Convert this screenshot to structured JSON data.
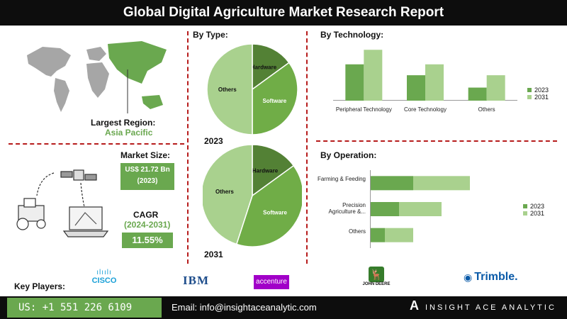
{
  "title": "Global Digital Agriculture Market Research Report",
  "region": {
    "label": "Largest Region:",
    "value": "Asia Pacific"
  },
  "market_size": {
    "label": "Market Size:",
    "value": "US$ 21.72 Bn",
    "year": "(2023)"
  },
  "cagr": {
    "label": "CAGR",
    "period": "(2024-2031)",
    "value": "11.55%"
  },
  "by_type": {
    "title": "By Type:",
    "year_2023": "2023",
    "year_2031": "2031"
  },
  "by_technology": {
    "title": "By  Technology:"
  },
  "by_operation": {
    "title": "By Operation:"
  },
  "key_players": {
    "label": "Key Players:",
    "logos": [
      "CISCO",
      "IBM",
      "accenture",
      "JOHN DEERE",
      "Trimble."
    ]
  },
  "footer": {
    "phone": "US: +1 551 226 6109",
    "email": "Email: info@insightaceanalytic.com",
    "brand": "INSIGHT ACE ANALYTIC"
  },
  "colors": {
    "dark_green": "#538135",
    "mid_green": "#70ad47",
    "light_green": "#a9d18e",
    "bar_2031": "#a9d18e",
    "bar_2023": "#6aa84f",
    "accent_red": "#b71c1c"
  },
  "chart_data": [
    {
      "type": "pie",
      "title": "By Type:",
      "year": "2023",
      "labels": [
        "Hardware",
        "Software",
        "Others"
      ],
      "values": [
        15,
        35,
        50
      ]
    },
    {
      "type": "pie",
      "title": "By Type:",
      "year": "2031",
      "labels": [
        "Hardware",
        "Software",
        "Others"
      ],
      "values": [
        15,
        40,
        45
      ]
    },
    {
      "type": "bar",
      "title": "By  Technology:",
      "categories": [
        "Peripheral Technology",
        "Core Technology",
        "Others"
      ],
      "series": [
        {
          "name": "2023",
          "values": [
            50,
            35,
            18
          ]
        },
        {
          "name": "2031",
          "values": [
            70,
            50,
            35
          ]
        }
      ],
      "ylim": [
        0,
        80
      ]
    },
    {
      "type": "bar",
      "orientation": "horizontal",
      "stacked": true,
      "title": "By Operation:",
      "categories": [
        "Farming & Feeding",
        "Precision Agriculture &...",
        "Others"
      ],
      "series": [
        {
          "name": "2023",
          "values": [
            30,
            20,
            10
          ]
        },
        {
          "name": "2031",
          "values": [
            40,
            30,
            20
          ]
        }
      ],
      "xlim": [
        0,
        80
      ]
    }
  ]
}
